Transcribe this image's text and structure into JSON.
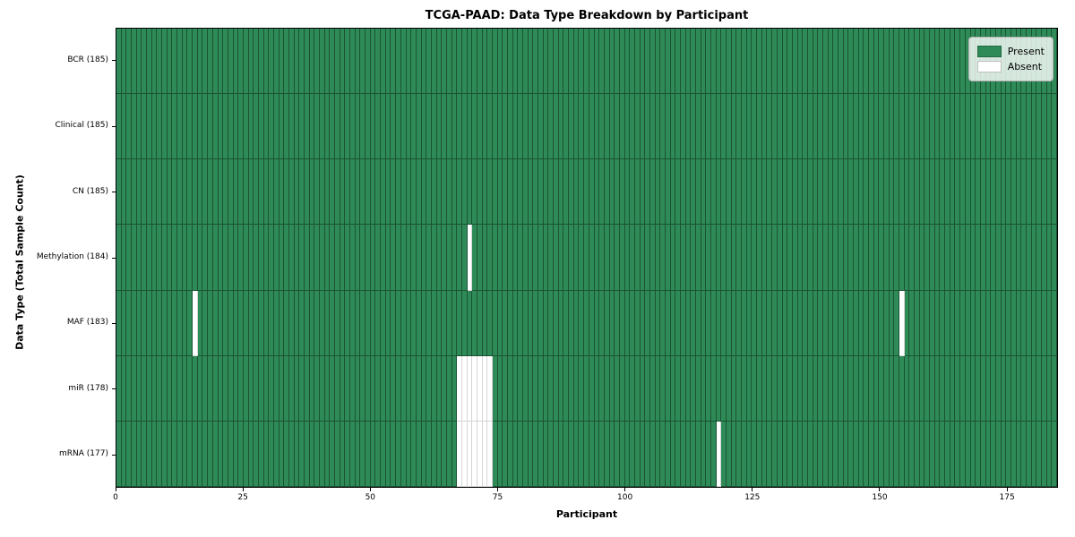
{
  "chart_data": {
    "type": "heatmap",
    "title": "TCGA-PAAD: Data Type Breakdown by Participant",
    "xlabel": "Participant",
    "ylabel": "Data Type (Total Sample Count)",
    "xlim": [
      0,
      185
    ],
    "n_participants": 185,
    "x_ticks": [
      0,
      25,
      50,
      75,
      100,
      125,
      150,
      175
    ],
    "grid": "off",
    "legend_position": "upper right",
    "present_color": "#2e8b57",
    "absent_color": "#ffffff",
    "legend": [
      {
        "label": "Present",
        "color": "#2e8b57"
      },
      {
        "label": "Absent",
        "color": "#ffffff"
      }
    ],
    "rows": [
      {
        "label": "BCR (185)",
        "data_type": "BCR",
        "total_samples": 185,
        "absent_participants": []
      },
      {
        "label": "Clinical (185)",
        "data_type": "Clinical",
        "total_samples": 185,
        "absent_participants": []
      },
      {
        "label": "CN (185)",
        "data_type": "CN",
        "total_samples": 185,
        "absent_participants": []
      },
      {
        "label": "Methylation (184)",
        "data_type": "Methylation",
        "total_samples": 184,
        "absent_participants": [
          69
        ]
      },
      {
        "label": "MAF (183)",
        "data_type": "MAF",
        "total_samples": 183,
        "absent_participants": [
          15,
          154
        ]
      },
      {
        "label": "miR (178)",
        "data_type": "miR",
        "total_samples": 178,
        "absent_participants": [
          67,
          68,
          69,
          70,
          71,
          72,
          73
        ]
      },
      {
        "label": "mRNA (177)",
        "data_type": "mRNA",
        "total_samples": 177,
        "absent_participants": [
          67,
          68,
          69,
          70,
          71,
          72,
          73,
          118
        ]
      }
    ]
  }
}
